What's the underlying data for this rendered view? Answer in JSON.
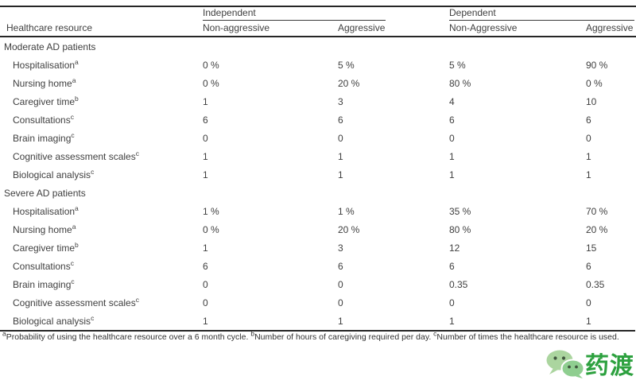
{
  "table": {
    "col_groups": [
      {
        "label": "Independent"
      },
      {
        "label": "Dependent"
      }
    ],
    "columns": {
      "resource": "Healthcare resource",
      "ind_nonagg": "Non-aggressive",
      "ind_agg": "Aggressive",
      "dep_nonagg": "Non-Aggressive",
      "dep_agg": "Aggressive"
    },
    "sections": [
      {
        "title": "Moderate AD patients",
        "rows": [
          {
            "label": "Hospitalisation",
            "sup": "a",
            "values": [
              "0 %",
              "5 %",
              "5 %",
              "90 %"
            ]
          },
          {
            "label": "Nursing home",
            "sup": "a",
            "values": [
              "0 %",
              "20 %",
              "80 %",
              "0 %"
            ]
          },
          {
            "label": "Caregiver time",
            "sup": "b",
            "values": [
              "1",
              "3",
              "4",
              "10"
            ]
          },
          {
            "label": "Consultations",
            "sup": "c",
            "values": [
              "6",
              "6",
              "6",
              "6"
            ]
          },
          {
            "label": "Brain imaging",
            "sup": "c",
            "values": [
              "0",
              "0",
              "0",
              "0"
            ]
          },
          {
            "label": "Cognitive assessment scales",
            "sup": "c",
            "values": [
              "1",
              "1",
              "1",
              "1"
            ]
          },
          {
            "label": "Biological analysis",
            "sup": "c",
            "values": [
              "1",
              "1",
              "1",
              "1"
            ]
          }
        ]
      },
      {
        "title": "Severe AD patients",
        "rows": [
          {
            "label": "Hospitalisation",
            "sup": "a",
            "values": [
              "1 %",
              "1 %",
              "35 %",
              "70 %"
            ]
          },
          {
            "label": "Nursing home",
            "sup": "a",
            "values": [
              "0 %",
              "20 %",
              "80 %",
              "20 %"
            ]
          },
          {
            "label": "Caregiver time",
            "sup": "b",
            "values": [
              "1",
              "3",
              "12",
              "15"
            ]
          },
          {
            "label": "Consultations",
            "sup": "c",
            "values": [
              "6",
              "6",
              "6",
              "6"
            ]
          },
          {
            "label": "Brain imaging",
            "sup": "c",
            "values": [
              "0",
              "0",
              "0.35",
              "0.35"
            ]
          },
          {
            "label": "Cognitive assessment scales",
            "sup": "c",
            "values": [
              "0",
              "0",
              "0",
              "0"
            ]
          },
          {
            "label": "Biological analysis",
            "sup": "c",
            "values": [
              "1",
              "1",
              "1",
              "1"
            ]
          }
        ]
      }
    ],
    "footnotes": [
      {
        "sup": "a",
        "text": "Probability of using the healthcare resource over a 6 month cycle. "
      },
      {
        "sup": "b",
        "text": "Number of hours of caregiving required per day. "
      },
      {
        "sup": "c",
        "text": "Number of times the healthcare resource is used."
      }
    ]
  },
  "watermark": {
    "brand_text": "药渡",
    "icon": "wechat-chat-bubbles-icon",
    "brand_color": "#2da13f",
    "bubble_back_color": "#abd59f",
    "bubble_front_color": "#8fce90",
    "eye_color": "#41573f"
  },
  "colors": {
    "text": "#3f3f3f",
    "rule": "#262626"
  }
}
